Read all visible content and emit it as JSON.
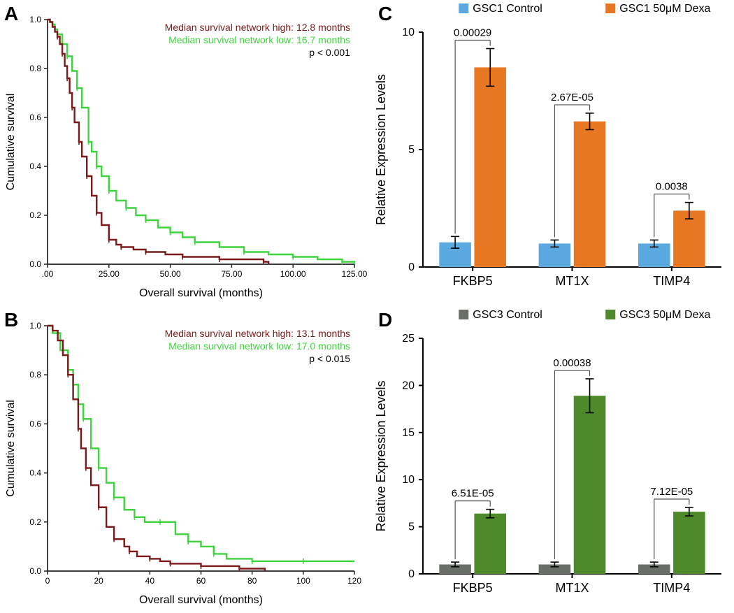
{
  "panelA": {
    "label": "A",
    "title_high": "Median survival network high:",
    "value_high": "12.8 months",
    "title_low": "Median survival network low:",
    "value_low": "16.7 months",
    "pvalue": "p < 0.001",
    "xlabel": "Overall survival (months)",
    "ylabel": "Cumulative survival",
    "xlim": [
      0,
      125
    ],
    "ylim": [
      0,
      1
    ],
    "xticks": [
      0,
      25,
      50,
      75,
      100,
      125
    ],
    "xtick_labels": [
      ".00",
      "25.00",
      "50.00",
      "75.00",
      "100.00",
      "125.00"
    ],
    "yticks": [
      0,
      0.2,
      0.4,
      0.6,
      0.8,
      1.0
    ],
    "ytick_labels": [
      "0.0",
      "0.2",
      "0.4",
      "0.6",
      "0.8",
      "1.0"
    ],
    "color_high": "#7a1a1a",
    "color_low": "#3fd43f",
    "axis_color": "#222222",
    "label_fontsize": 16,
    "tick_fontsize": 12,
    "curve_high": [
      [
        0,
        1
      ],
      [
        1,
        0.99
      ],
      [
        2,
        0.97
      ],
      [
        3,
        0.95
      ],
      [
        4,
        0.93
      ],
      [
        5,
        0.9
      ],
      [
        6,
        0.86
      ],
      [
        7,
        0.81
      ],
      [
        8,
        0.76
      ],
      [
        9,
        0.7
      ],
      [
        10,
        0.64
      ],
      [
        11,
        0.58
      ],
      [
        12.8,
        0.5
      ],
      [
        14,
        0.44
      ],
      [
        16,
        0.36
      ],
      [
        18,
        0.28
      ],
      [
        20,
        0.21
      ],
      [
        22,
        0.16
      ],
      [
        25,
        0.1
      ],
      [
        28,
        0.08
      ],
      [
        30,
        0.07
      ],
      [
        35,
        0.06
      ],
      [
        40,
        0.05
      ],
      [
        48,
        0.04
      ],
      [
        55,
        0.03
      ],
      [
        60,
        0.03
      ],
      [
        70,
        0.02
      ],
      [
        78,
        0.02
      ],
      [
        88,
        0.01
      ],
      [
        90,
        0.0
      ]
    ],
    "curve_low": [
      [
        0,
        1
      ],
      [
        1,
        0.99
      ],
      [
        2,
        0.98
      ],
      [
        3,
        0.96
      ],
      [
        4,
        0.94
      ],
      [
        6,
        0.9
      ],
      [
        8,
        0.85
      ],
      [
        10,
        0.79
      ],
      [
        12,
        0.72
      ],
      [
        14,
        0.64
      ],
      [
        16.7,
        0.5
      ],
      [
        18,
        0.46
      ],
      [
        20,
        0.4
      ],
      [
        22,
        0.36
      ],
      [
        25,
        0.3
      ],
      [
        28,
        0.26
      ],
      [
        32,
        0.23
      ],
      [
        36,
        0.2
      ],
      [
        40,
        0.18
      ],
      [
        45,
        0.15
      ],
      [
        50,
        0.13
      ],
      [
        55,
        0.11
      ],
      [
        60,
        0.09
      ],
      [
        70,
        0.07
      ],
      [
        80,
        0.05
      ],
      [
        90,
        0.04
      ],
      [
        100,
        0.03
      ],
      [
        110,
        0.02
      ],
      [
        120,
        0.01
      ],
      [
        125,
        0.0
      ]
    ]
  },
  "panelB": {
    "label": "B",
    "title_high": "Median survival network high:",
    "value_high": "13.1 months",
    "title_low": "Median survival network low:",
    "value_low": "17.0 months",
    "pvalue": "p < 0.015",
    "xlabel": "Overall survival (months)",
    "ylabel": "Cumulative survival",
    "xlim": [
      0,
      120
    ],
    "ylim": [
      0,
      1
    ],
    "xticks": [
      0,
      20,
      40,
      60,
      80,
      100,
      120
    ],
    "xtick_labels": [
      "0",
      "20",
      "40",
      "60",
      "80",
      "100",
      "120"
    ],
    "yticks": [
      0,
      0.2,
      0.4,
      0.6,
      0.8,
      1.0
    ],
    "ytick_labels": [
      "0.0",
      "0.2",
      "0.4",
      "0.6",
      "0.8",
      "1.0"
    ],
    "color_high": "#7a1a1a",
    "color_low": "#3fd43f",
    "axis_color": "#222222",
    "label_fontsize": 16,
    "tick_fontsize": 12,
    "curve_high": [
      [
        0,
        1
      ],
      [
        2,
        0.98
      ],
      [
        4,
        0.94
      ],
      [
        6,
        0.88
      ],
      [
        8,
        0.8
      ],
      [
        10,
        0.7
      ],
      [
        12,
        0.58
      ],
      [
        13.1,
        0.5
      ],
      [
        15,
        0.42
      ],
      [
        17,
        0.35
      ],
      [
        20,
        0.26
      ],
      [
        23,
        0.18
      ],
      [
        26,
        0.13
      ],
      [
        30,
        0.1
      ],
      [
        32,
        0.08
      ],
      [
        35,
        0.06
      ],
      [
        40,
        0.05
      ],
      [
        44,
        0.04
      ],
      [
        48,
        0.03
      ],
      [
        55,
        0.03
      ],
      [
        60,
        0.02
      ],
      [
        65,
        0.02
      ],
      [
        75,
        0.01
      ],
      [
        85,
        0.0
      ]
    ],
    "curve_low": [
      [
        0,
        1
      ],
      [
        2,
        0.97
      ],
      [
        5,
        0.9
      ],
      [
        8,
        0.82
      ],
      [
        10,
        0.76
      ],
      [
        12,
        0.68
      ],
      [
        14,
        0.62
      ],
      [
        17,
        0.5
      ],
      [
        20,
        0.42
      ],
      [
        23,
        0.36
      ],
      [
        26,
        0.3
      ],
      [
        30,
        0.25
      ],
      [
        34,
        0.22
      ],
      [
        38,
        0.2
      ],
      [
        44,
        0.2
      ],
      [
        50,
        0.15
      ],
      [
        55,
        0.12
      ],
      [
        60,
        0.1
      ],
      [
        65,
        0.07
      ],
      [
        70,
        0.05
      ],
      [
        80,
        0.04
      ],
      [
        90,
        0.04
      ],
      [
        100,
        0.04
      ],
      [
        110,
        0.04
      ],
      [
        120,
        0.04
      ]
    ]
  },
  "panelC": {
    "label": "C",
    "legend": [
      {
        "label": "GSC1 Control",
        "color": "#5aa9e0"
      },
      {
        "label": "GSC1 50μM Dexa",
        "color": "#e87722"
      }
    ],
    "ylabel": "Relative Expression Levels",
    "xlabel_fontsize": 18,
    "ylabel_fontsize": 18,
    "tick_fontsize": 16,
    "ylim": [
      0,
      10
    ],
    "yticks": [
      0,
      5,
      10
    ],
    "categories": [
      "FKBP5",
      "MT1X",
      "TIMP4"
    ],
    "bars": [
      {
        "ctrl": 1.05,
        "ctrl_err": 0.25,
        "treat": 8.5,
        "treat_err": 0.8,
        "p": "0.00029"
      },
      {
        "ctrl": 1.0,
        "ctrl_err": 0.15,
        "treat": 6.2,
        "treat_err": 0.35,
        "p": "2.67E-05"
      },
      {
        "ctrl": 1.0,
        "ctrl_err": 0.15,
        "treat": 2.4,
        "treat_err": 0.35,
        "p": "0.0038"
      }
    ],
    "ctrl_color": "#5aa9e0",
    "treat_color": "#e87722",
    "axis_color": "#000000",
    "bar_width": 0.32
  },
  "panelD": {
    "label": "D",
    "legend": [
      {
        "label": "GSC3 Control",
        "color": "#6a6e68"
      },
      {
        "label": "GSC3 50μM Dexa",
        "color": "#4e8a2a"
      }
    ],
    "ylabel": "Relative Expression Levels",
    "xlabel_fontsize": 18,
    "ylabel_fontsize": 18,
    "tick_fontsize": 16,
    "ylim": [
      0,
      25
    ],
    "yticks": [
      0,
      5,
      10,
      15,
      20,
      25
    ],
    "categories": [
      "FKBP5",
      "MT1X",
      "TIMP4"
    ],
    "bars": [
      {
        "ctrl": 1.0,
        "ctrl_err": 0.25,
        "treat": 6.4,
        "treat_err": 0.45,
        "p": "6.51E-05"
      },
      {
        "ctrl": 1.0,
        "ctrl_err": 0.25,
        "treat": 18.9,
        "treat_err": 1.8,
        "p": "0.00038"
      },
      {
        "ctrl": 1.0,
        "ctrl_err": 0.25,
        "treat": 6.6,
        "treat_err": 0.45,
        "p": "7.12E-05"
      }
    ],
    "ctrl_color": "#6a6e68",
    "treat_color": "#4e8a2a",
    "axis_color": "#000000",
    "bar_width": 0.32
  }
}
